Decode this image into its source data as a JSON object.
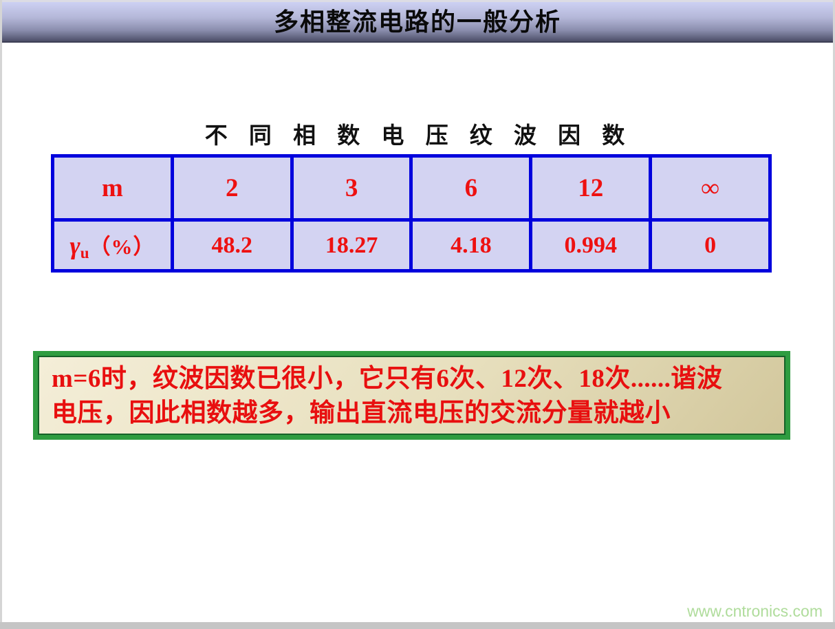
{
  "header": {
    "title": "多相整流电路的一般分析"
  },
  "table_section": {
    "title": "不 同 相 数 电 压 纹 波 因 数",
    "table": {
      "header_row": [
        "m",
        "2",
        "3",
        "6",
        "12",
        "∞"
      ],
      "row_label": {
        "symbol": "γ",
        "subscript": "u",
        "unit": "（%）"
      },
      "values": [
        "48.2",
        "18.27",
        "4.18",
        "0.994",
        "0"
      ]
    },
    "colors": {
      "border": "#0000dd",
      "cell_bg": "#d3d3f2",
      "text": "#ee1111"
    }
  },
  "note_box": {
    "lines": [
      "m=6时，纹波因数已很小，它只有6次、12次、18次......谐波",
      "电压，因此相数越多，输出直流电压的交流分量就越小"
    ],
    "colors": {
      "border": "#2f9c40",
      "inner_border": "#166128",
      "background": "#e7dfbd",
      "text": "#e80f0f"
    }
  },
  "watermark": {
    "text": "www.cntronics.com",
    "color": "#afdc9b"
  },
  "theme": {
    "header_gradient_top": "#cdd1f3",
    "header_gradient_bottom": "#4c4e68",
    "title_color": "#0a0a0a"
  }
}
